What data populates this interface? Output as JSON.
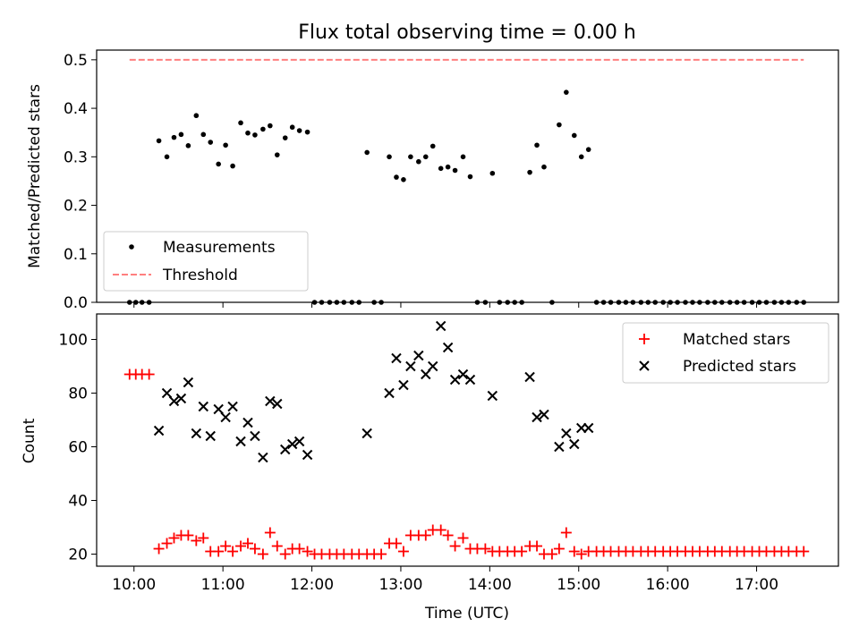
{
  "chart_data": [
    {
      "type": "scatter",
      "title": "Flux total observing time = 0.00 h",
      "xlabel": "",
      "ylabel": "Matched/Predicted stars",
      "xlim": [
        9.58,
        17.92
      ],
      "ylim": [
        0.0,
        0.52
      ],
      "x_tick_values": [
        10,
        11,
        12,
        13,
        14,
        15,
        16,
        17
      ],
      "y_ticks": [
        "0.0",
        "0.1",
        "0.2",
        "0.3",
        "0.4",
        "0.5"
      ],
      "y_tick_values": [
        0.0,
        0.1,
        0.2,
        0.3,
        0.4,
        0.5
      ],
      "grid": false,
      "legend_position": "lower-left",
      "series": [
        {
          "name": "Measurements",
          "marker": "dot",
          "color": "#000000",
          "x": [
            9.95,
            10.02,
            10.09,
            10.17,
            10.28,
            10.37,
            10.45,
            10.53,
            10.61,
            10.7,
            10.78,
            10.86,
            10.95,
            11.03,
            11.11,
            11.2,
            11.28,
            11.36,
            11.45,
            11.53,
            11.61,
            11.7,
            11.78,
            11.86,
            11.95,
            12.03,
            12.11,
            12.2,
            12.28,
            12.36,
            12.45,
            12.53,
            12.62,
            12.7,
            12.78,
            12.87,
            12.95,
            13.03,
            13.11,
            13.2,
            13.28,
            13.36,
            13.45,
            13.53,
            13.61,
            13.7,
            13.78,
            13.86,
            13.95,
            14.03,
            14.11,
            14.2,
            14.28,
            14.36,
            14.45,
            14.53,
            14.61,
            14.7,
            14.78,
            14.86,
            14.95,
            15.03,
            15.11,
            15.2,
            15.28,
            15.36,
            15.45,
            15.53,
            15.61,
            15.7,
            15.78,
            15.86,
            15.95,
            16.03,
            16.11,
            16.2,
            16.28,
            16.36,
            16.45,
            16.53,
            16.61,
            16.7,
            16.78,
            16.86,
            16.95,
            17.03,
            17.11,
            17.2,
            17.28,
            17.36,
            17.45,
            17.53
          ],
          "y": [
            0.0,
            0.0,
            0.0,
            0.0,
            0.333,
            0.3,
            0.34,
            0.346,
            0.323,
            0.385,
            0.346,
            0.33,
            0.285,
            0.324,
            0.281,
            0.37,
            0.349,
            0.345,
            0.357,
            0.364,
            0.304,
            0.339,
            0.361,
            0.354,
            0.351,
            0.0,
            0.0,
            0.0,
            0.0,
            0.0,
            0.0,
            0.0,
            0.309,
            0.0,
            0.0,
            0.3,
            0.258,
            0.253,
            0.3,
            0.29,
            0.3,
            0.322,
            0.276,
            0.279,
            0.272,
            0.3,
            0.259,
            0.0,
            0.0,
            0.266,
            0.0,
            0.0,
            0.0,
            0.0,
            0.268,
            0.324,
            0.279,
            0.0,
            0.366,
            0.433,
            0.344,
            0.3,
            0.315,
            0.0,
            0.0,
            0.0,
            0.0,
            0.0,
            0.0,
            0.0,
            0.0,
            0.0,
            0.0,
            0.0,
            0.0,
            0.0,
            0.0,
            0.0,
            0.0,
            0.0,
            0.0,
            0.0,
            0.0,
            0.0,
            0.0,
            0.0,
            0.0,
            0.0,
            0.0,
            0.0,
            0.0,
            0.0
          ]
        },
        {
          "name": "Threshold",
          "type": "line",
          "style": "dashed",
          "color": "#ff7f7f",
          "x": [
            9.95,
            17.53
          ],
          "y": [
            0.5,
            0.5
          ]
        }
      ]
    },
    {
      "type": "scatter",
      "title": "",
      "xlabel": "Time (UTC)",
      "ylabel": "Count",
      "xlim": [
        9.58,
        17.92
      ],
      "ylim": [
        15.5,
        109.5
      ],
      "x_ticks": [
        "10:00",
        "11:00",
        "12:00",
        "13:00",
        "14:00",
        "15:00",
        "16:00",
        "17:00"
      ],
      "x_tick_values": [
        10,
        11,
        12,
        13,
        14,
        15,
        16,
        17
      ],
      "y_ticks": [
        "20",
        "40",
        "60",
        "80",
        "100"
      ],
      "y_tick_values": [
        20,
        40,
        60,
        80,
        100
      ],
      "grid": false,
      "legend_position": "top-right",
      "series": [
        {
          "name": "Matched stars",
          "marker": "plus",
          "color": "#ff0000",
          "x": [
            9.95,
            10.02,
            10.09,
            10.17,
            10.28,
            10.37,
            10.45,
            10.53,
            10.61,
            10.7,
            10.78,
            10.86,
            10.95,
            11.03,
            11.11,
            11.2,
            11.28,
            11.36,
            11.45,
            11.53,
            11.61,
            11.7,
            11.78,
            11.86,
            11.95,
            12.03,
            12.11,
            12.2,
            12.28,
            12.36,
            12.45,
            12.53,
            12.62,
            12.7,
            12.78,
            12.87,
            12.95,
            13.03,
            13.11,
            13.2,
            13.28,
            13.36,
            13.45,
            13.53,
            13.61,
            13.7,
            13.78,
            13.86,
            13.95,
            14.03,
            14.11,
            14.2,
            14.28,
            14.36,
            14.45,
            14.53,
            14.61,
            14.7,
            14.78,
            14.86,
            14.95,
            15.03,
            15.11,
            15.2,
            15.28,
            15.36,
            15.45,
            15.53,
            15.61,
            15.7,
            15.78,
            15.86,
            15.95,
            16.03,
            16.11,
            16.2,
            16.28,
            16.36,
            16.45,
            16.53,
            16.61,
            16.7,
            16.78,
            16.86,
            16.95,
            17.03,
            17.11,
            17.2,
            17.28,
            17.36,
            17.45,
            17.53
          ],
          "y": [
            87,
            87,
            87,
            87,
            22,
            24,
            26,
            27,
            27,
            25,
            26,
            21,
            21,
            23,
            21,
            23,
            24,
            22,
            20,
            28,
            23,
            20,
            22,
            22,
            21,
            20,
            20,
            20,
            20,
            20,
            20,
            20,
            20,
            20,
            20,
            24,
            24,
            21,
            27,
            27,
            27,
            29,
            29,
            27,
            23,
            26,
            22,
            22,
            22,
            21,
            21,
            21,
            21,
            21,
            23,
            23,
            20,
            20,
            22,
            28,
            21,
            20,
            21,
            21,
            21,
            21,
            21,
            21,
            21,
            21,
            21,
            21,
            21,
            21,
            21,
            21,
            21,
            21,
            21,
            21,
            21,
            21,
            21,
            21,
            21,
            21,
            21,
            21,
            21,
            21,
            21,
            21
          ]
        },
        {
          "name": "Predicted stars",
          "marker": "x",
          "color": "#000000",
          "x": [
            10.28,
            10.37,
            10.45,
            10.53,
            10.61,
            10.7,
            10.78,
            10.86,
            10.95,
            11.03,
            11.11,
            11.2,
            11.28,
            11.36,
            11.45,
            11.53,
            11.61,
            11.7,
            11.78,
            11.86,
            11.95,
            12.62,
            12.87,
            12.95,
            13.03,
            13.11,
            13.2,
            13.28,
            13.36,
            13.45,
            13.53,
            13.61,
            13.7,
            13.78,
            14.03,
            14.45,
            14.53,
            14.61,
            14.78,
            14.86,
            14.95,
            15.03,
            15.11
          ],
          "y": [
            66,
            80,
            77,
            78,
            84,
            65,
            75,
            64,
            74,
            71,
            75,
            62,
            69,
            64,
            56,
            77,
            76,
            59,
            61,
            62,
            57,
            65,
            80,
            93,
            83,
            90,
            94,
            87,
            90,
            105,
            97,
            85,
            87,
            85,
            79,
            86,
            71,
            72,
            60,
            65,
            61,
            67,
            67
          ]
        }
      ]
    }
  ]
}
